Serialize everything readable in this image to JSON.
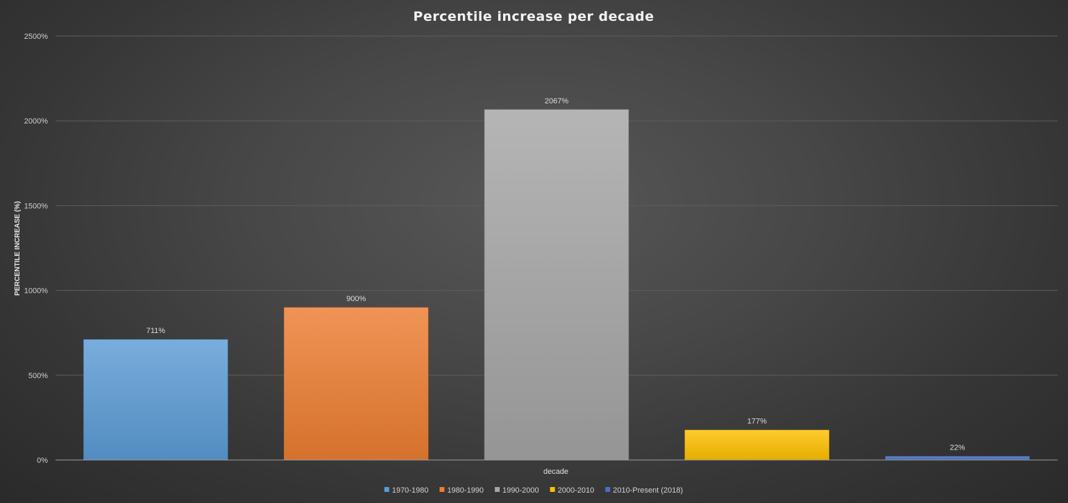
{
  "chart_data": {
    "type": "bar",
    "title": "Percentile increase per decade",
    "xlabel": "decade",
    "ylabel": "PERCENTILE INCREASE (%)",
    "ylim": [
      0,
      2500
    ],
    "yticks": [
      "0%",
      "500%",
      "1000%",
      "1500%",
      "2000%",
      "2500%"
    ],
    "grid": true,
    "legend_position": "bottom",
    "categories": [
      "1970-1980",
      "1980-1990",
      "1990-2000",
      "2000-2010",
      "2010-Present (2018)"
    ],
    "values": [
      711,
      900,
      2067,
      177,
      22
    ],
    "data_labels": [
      "711%",
      "900%",
      "2067%",
      "177%",
      "22%"
    ],
    "colors": [
      "#5B9BD5",
      "#ED7D31",
      "#A5A5A5",
      "#FFC000",
      "#4472C4"
    ]
  }
}
